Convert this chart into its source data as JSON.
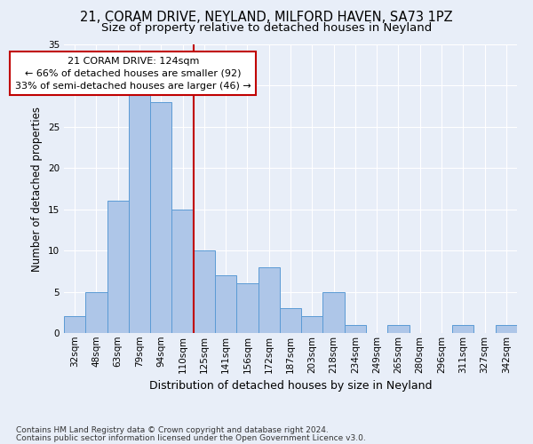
{
  "title1": "21, CORAM DRIVE, NEYLAND, MILFORD HAVEN, SA73 1PZ",
  "title2": "Size of property relative to detached houses in Neyland",
  "xlabel": "Distribution of detached houses by size in Neyland",
  "ylabel": "Number of detached properties",
  "footnote1": "Contains HM Land Registry data © Crown copyright and database right 2024.",
  "footnote2": "Contains public sector information licensed under the Open Government Licence v3.0.",
  "bin_labels": [
    "32sqm",
    "48sqm",
    "63sqm",
    "79sqm",
    "94sqm",
    "110sqm",
    "125sqm",
    "141sqm",
    "156sqm",
    "172sqm",
    "187sqm",
    "203sqm",
    "218sqm",
    "234sqm",
    "249sqm",
    "265sqm",
    "280sqm",
    "296sqm",
    "311sqm",
    "327sqm",
    "342sqm"
  ],
  "bar_values": [
    2,
    5,
    16,
    29,
    28,
    15,
    10,
    7,
    6,
    8,
    3,
    2,
    5,
    1,
    0,
    1,
    0,
    0,
    1,
    0,
    1
  ],
  "bar_color": "#aec6e8",
  "bar_edge_color": "#5b9bd5",
  "vline_x": 5.5,
  "vline_color": "#c00000",
  "annotation_line1": "21 CORAM DRIVE: 124sqm",
  "annotation_line2": "← 66% of detached houses are smaller (92)",
  "annotation_line3": "33% of semi-detached houses are larger (46) →",
  "annotation_box_color": "#ffffff",
  "annotation_box_edge": "#c00000",
  "ylim": [
    0,
    35
  ],
  "yticks": [
    0,
    5,
    10,
    15,
    20,
    25,
    30,
    35
  ],
  "background_color": "#e8eef8",
  "grid_color": "#ffffff",
  "title1_fontsize": 10.5,
  "title2_fontsize": 9.5,
  "ylabel_fontsize": 8.5,
  "xlabel_fontsize": 9,
  "annot_fontsize": 8,
  "tick_fontsize": 7.5,
  "footnote_fontsize": 6.5
}
